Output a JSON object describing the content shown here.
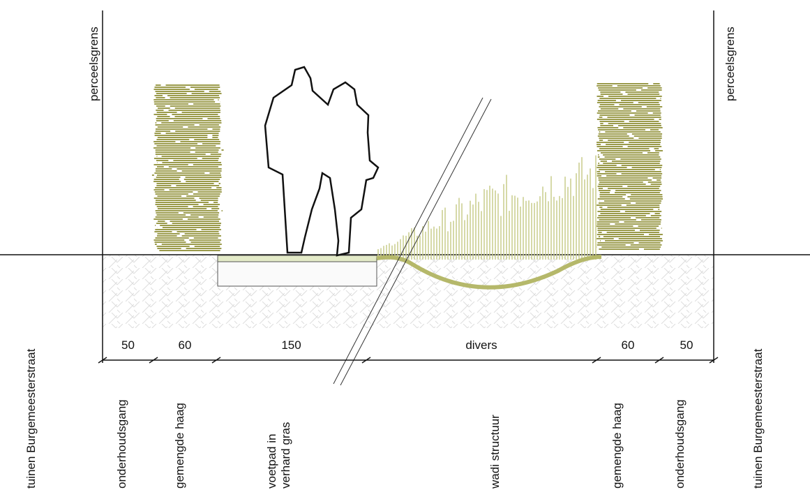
{
  "labels": {
    "boundary_left": "perceelsgrens",
    "boundary_right": "perceelsgrens"
  },
  "dimensions": [
    50,
    60,
    150,
    "divers",
    60,
    50
  ],
  "zones": [
    "tuinen Burgemeesterstraat",
    "onderhoudsgang",
    "gemengde haag",
    [
      "voetpad in",
      "verhard gras"
    ],
    "wadi structuur",
    "gemengde haag",
    "onderhoudsgang",
    "tuinen Burgemeesterstraat"
  ]
}
